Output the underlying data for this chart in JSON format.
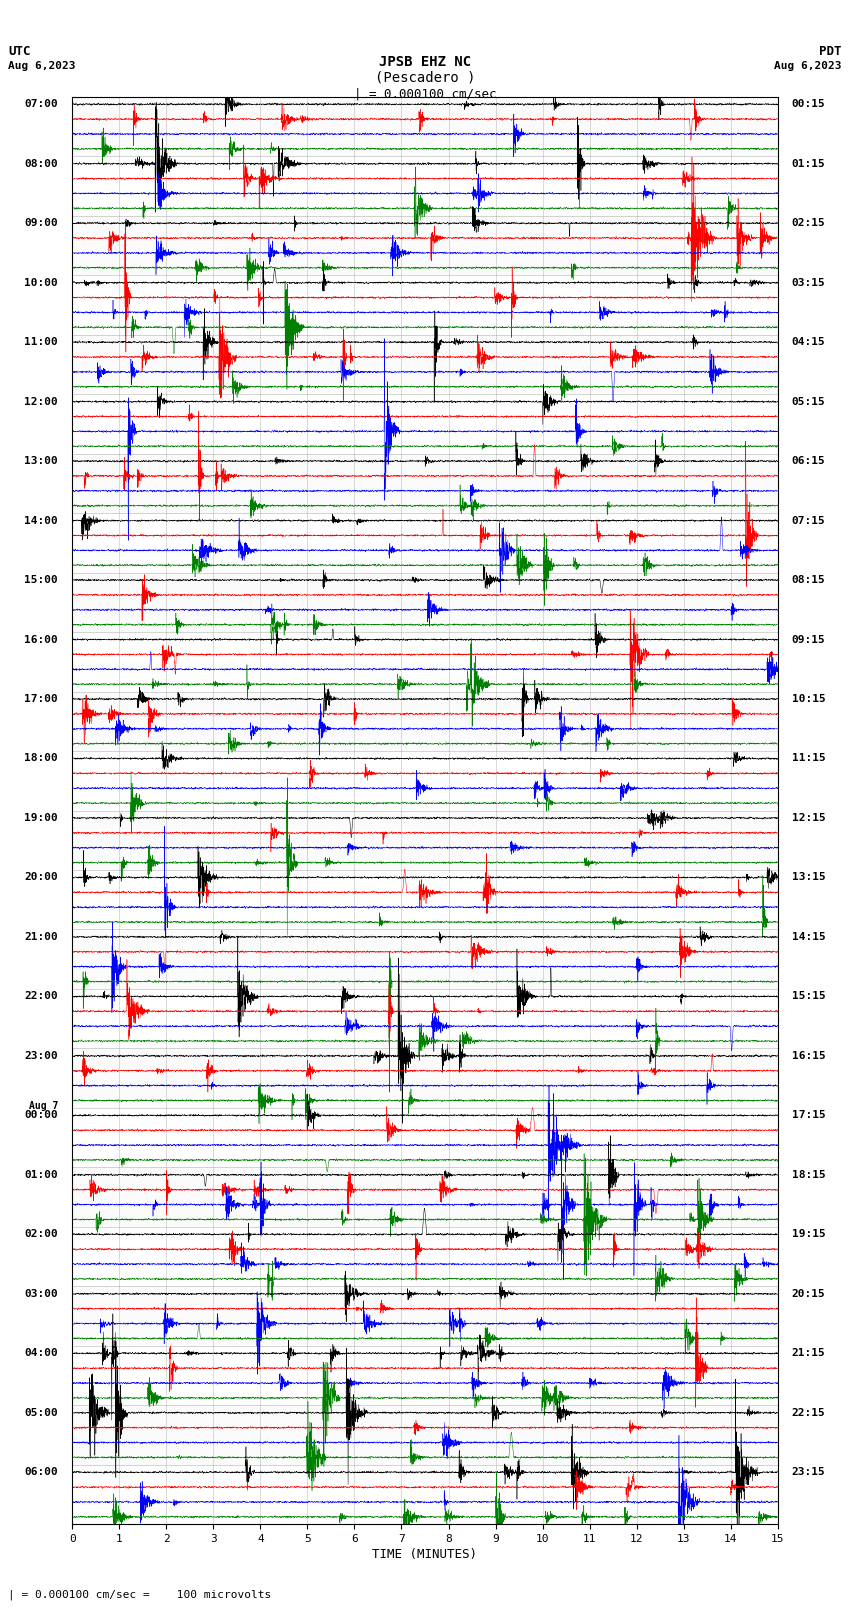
{
  "title_line1": "JPSB EHZ NC",
  "title_line2": "(Pescadero )",
  "title_line3": "| = 0.000100 cm/sec",
  "label_utc": "UTC",
  "label_utc_date": "Aug 6,2023",
  "label_pdt": "PDT",
  "label_pdt_date": "Aug 6,2023",
  "xlabel": "TIME (MINUTES)",
  "footer": "| = 0.000100 cm/sec =    100 microvolts",
  "left_times": [
    "07:00",
    "08:00",
    "09:00",
    "10:00",
    "11:00",
    "12:00",
    "13:00",
    "14:00",
    "15:00",
    "16:00",
    "17:00",
    "18:00",
    "19:00",
    "20:00",
    "21:00",
    "22:00",
    "23:00",
    "00:00",
    "01:00",
    "02:00",
    "03:00",
    "04:00",
    "05:00",
    "06:00"
  ],
  "aug7_row": 17,
  "right_times": [
    "00:15",
    "01:15",
    "02:15",
    "03:15",
    "04:15",
    "05:15",
    "06:15",
    "07:15",
    "08:15",
    "09:15",
    "10:15",
    "11:15",
    "12:15",
    "13:15",
    "14:15",
    "15:15",
    "16:15",
    "17:15",
    "18:15",
    "19:15",
    "20:15",
    "21:15",
    "22:15",
    "23:15"
  ],
  "colors": [
    "black",
    "red",
    "blue",
    "green"
  ],
  "n_rows": 24,
  "traces_per_row": 4,
  "xlim": [
    0,
    15
  ],
  "xticks": [
    0,
    1,
    2,
    3,
    4,
    5,
    6,
    7,
    8,
    9,
    10,
    11,
    12,
    13,
    14,
    15
  ],
  "background_color": "white",
  "seed": 12345
}
